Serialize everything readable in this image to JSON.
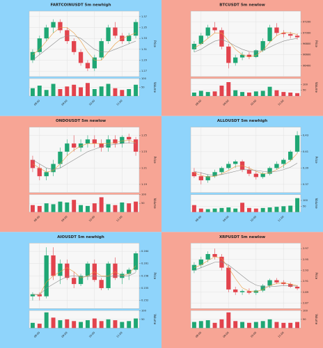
{
  "chart_data": [
    {
      "type": "candlestick",
      "title": "FARTCOINUSDT 5m newhigh",
      "background": "#8fd4fb",
      "up_color": "#1fa774",
      "down_color": "#e2434d",
      "grid": true,
      "y_label": "Price",
      "volume_label": "Volume",
      "categories": [
        null,
        "08:00",
        null,
        null,
        null,
        "09:00",
        null,
        null,
        null,
        "10:00",
        null,
        null,
        null,
        "11:00",
        null,
        null
      ],
      "ohlc": [
        [
          1.29,
          1.31,
          1.285,
          1.305
        ],
        [
          1.305,
          1.335,
          1.3,
          1.33
        ],
        [
          1.33,
          1.355,
          1.325,
          1.35
        ],
        [
          1.35,
          1.365,
          1.34,
          1.36
        ],
        [
          1.36,
          1.365,
          1.34,
          1.345
        ],
        [
          1.345,
          1.35,
          1.32,
          1.325
        ],
        [
          1.325,
          1.33,
          1.3,
          1.305
        ],
        [
          1.305,
          1.31,
          1.28,
          1.285
        ],
        [
          1.285,
          1.29,
          1.27,
          1.275
        ],
        [
          1.275,
          1.3,
          1.27,
          1.295
        ],
        [
          1.295,
          1.33,
          1.29,
          1.325
        ],
        [
          1.325,
          1.355,
          1.32,
          1.35
        ],
        [
          1.35,
          1.36,
          1.33,
          1.335
        ],
        [
          1.335,
          1.34,
          1.32,
          1.325
        ],
        [
          1.325,
          1.34,
          1.32,
          1.335
        ],
        [
          1.335,
          1.365,
          1.33,
          1.36
        ]
      ],
      "volume": [
        45,
        60,
        35,
        70,
        40,
        55,
        65,
        50,
        75,
        40,
        55,
        70,
        45,
        35,
        40,
        65
      ],
      "ma": [
        {
          "color": "#e89a3c",
          "values": [
            1.3,
            1.31,
            1.325,
            1.34,
            1.35,
            1.35,
            1.34,
            1.325,
            1.305,
            1.29,
            1.29,
            1.305,
            1.32,
            1.33,
            1.335,
            1.34
          ]
        },
        {
          "color": "#8a8a8a",
          "values": [
            1.29,
            1.3,
            1.31,
            1.32,
            1.33,
            1.335,
            1.335,
            1.33,
            1.32,
            1.31,
            1.305,
            1.305,
            1.31,
            1.315,
            1.32,
            1.325
          ]
        }
      ],
      "ylim": [
        1.26,
        1.38
      ],
      "yticks": [
        1.27,
        1.29,
        1.31,
        1.33,
        1.35,
        1.37
      ],
      "vlim": [
        0,
        100
      ],
      "vticks": [
        50,
        100
      ]
    },
    {
      "type": "candlestick",
      "title": "BTCUSDT 5m newlow",
      "background": "#f7a595",
      "up_color": "#1fa774",
      "down_color": "#e2434d",
      "grid": true,
      "y_label": "Price",
      "volume_label": "Volume",
      "categories": [
        null,
        "08:00",
        null,
        null,
        null,
        "09:00",
        null,
        null,
        null,
        "10:00",
        null,
        null,
        null,
        "11:00",
        null,
        null
      ],
      "ohlc": [
        [
          96700,
          96850,
          96650,
          96800
        ],
        [
          96800,
          97000,
          96780,
          96950
        ],
        [
          96950,
          97150,
          96900,
          97100
        ],
        [
          97100,
          97200,
          97000,
          97050
        ],
        [
          97050,
          97100,
          96700,
          96750
        ],
        [
          96750,
          96800,
          96350,
          96450
        ],
        [
          96450,
          96600,
          96400,
          96550
        ],
        [
          96550,
          96650,
          96500,
          96600
        ],
        [
          96600,
          96650,
          96520,
          96560
        ],
        [
          96560,
          96700,
          96540,
          96680
        ],
        [
          96680,
          96900,
          96650,
          96850
        ],
        [
          96850,
          97150,
          96820,
          97100
        ],
        [
          97100,
          97180,
          96950,
          97000
        ],
        [
          97000,
          97050,
          96920,
          96980
        ],
        [
          96980,
          97020,
          96900,
          96950
        ],
        [
          96950,
          96990,
          96880,
          96920
        ]
      ],
      "volume": [
        30,
        45,
        35,
        40,
        90,
        120,
        50,
        35,
        30,
        40,
        45,
        80,
        50,
        35,
        30,
        25
      ],
      "ma": [
        {
          "color": "#e89a3c",
          "values": [
            96720,
            96800,
            96900,
            97000,
            97000,
            96850,
            96700,
            96600,
            96560,
            96590,
            96680,
            96830,
            96950,
            97010,
            97000,
            96970
          ]
        },
        {
          "color": "#8a8a8a",
          "values": [
            96650,
            96700,
            96780,
            96850,
            96880,
            96830,
            96760,
            96700,
            96660,
            96650,
            96680,
            96740,
            96800,
            96850,
            96880,
            96900
          ]
        }
      ],
      "ylim": [
        96200,
        97400
      ],
      "yticks": [
        96400,
        96600,
        96800,
        97000,
        97200
      ],
      "vlim": [
        0,
        150
      ],
      "vticks": [
        50,
        100
      ]
    },
    {
      "type": "candlestick",
      "title": "ONDOUSDT 5m newlow",
      "background": "#f7a595",
      "up_color": "#1fa774",
      "down_color": "#e2434d",
      "grid": true,
      "y_label": "Price",
      "volume_label": "Volume",
      "categories": [
        null,
        "08:00",
        null,
        null,
        null,
        "09:00",
        null,
        null,
        null,
        "10:00",
        null,
        null,
        null,
        "11:00",
        null,
        null
      ],
      "ohlc": [
        [
          1.22,
          1.225,
          1.205,
          1.21
        ],
        [
          1.21,
          1.215,
          1.195,
          1.2
        ],
        [
          1.2,
          1.21,
          1.195,
          1.205
        ],
        [
          1.205,
          1.22,
          1.2,
          1.215
        ],
        [
          1.215,
          1.235,
          1.21,
          1.23
        ],
        [
          1.23,
          1.245,
          1.225,
          1.24
        ],
        [
          1.24,
          1.25,
          1.23,
          1.235
        ],
        [
          1.235,
          1.245,
          1.23,
          1.24
        ],
        [
          1.24,
          1.25,
          1.235,
          1.245
        ],
        [
          1.245,
          1.25,
          1.235,
          1.24
        ],
        [
          1.24,
          1.245,
          1.23,
          1.235
        ],
        [
          1.235,
          1.25,
          1.23,
          1.245
        ],
        [
          1.245,
          1.25,
          1.235,
          1.24
        ],
        [
          1.24,
          1.25,
          1.235,
          1.248
        ],
        [
          1.248,
          1.252,
          1.24,
          1.245
        ],
        [
          1.245,
          1.248,
          1.225,
          1.23
        ]
      ],
      "volume": [
        40,
        35,
        50,
        45,
        60,
        55,
        70,
        40,
        35,
        50,
        85,
        45,
        40,
        55,
        50,
        60
      ],
      "ma": [
        {
          "color": "#e89a3c",
          "values": [
            1.215,
            1.21,
            1.205,
            1.207,
            1.215,
            1.225,
            1.232,
            1.237,
            1.24,
            1.24,
            1.24,
            1.24,
            1.241,
            1.243,
            1.244,
            1.241
          ]
        },
        {
          "color": "#8a8a8a",
          "values": [
            1.22,
            1.215,
            1.21,
            1.208,
            1.21,
            1.215,
            1.22,
            1.225,
            1.23,
            1.233,
            1.236,
            1.238,
            1.239,
            1.24,
            1.241,
            1.24
          ]
        }
      ],
      "ylim": [
        1.18,
        1.26
      ],
      "yticks": [
        1.19,
        1.21,
        1.23,
        1.25
      ],
      "vlim": [
        0,
        100
      ],
      "vticks": [
        50,
        100
      ]
    },
    {
      "type": "candlestick",
      "title": "ALLOUSDT 5m newhigh",
      "background": "#8fd4fb",
      "up_color": "#1fa774",
      "down_color": "#e2434d",
      "grid": true,
      "y_label": "Price",
      "volume_label": "Volume",
      "categories": [
        null,
        "08:00",
        null,
        null,
        null,
        "09:00",
        null,
        null,
        null,
        "10:00",
        null,
        null,
        null,
        "11:00",
        null,
        null
      ],
      "ohlc": [
        [
          0.385,
          0.39,
          0.378,
          0.38
        ],
        [
          0.38,
          0.385,
          0.37,
          0.375
        ],
        [
          0.375,
          0.382,
          0.372,
          0.38
        ],
        [
          0.38,
          0.388,
          0.378,
          0.385
        ],
        [
          0.385,
          0.392,
          0.382,
          0.39
        ],
        [
          0.39,
          0.398,
          0.388,
          0.395
        ],
        [
          0.395,
          0.4,
          0.39,
          0.398
        ],
        [
          0.398,
          0.4,
          0.385,
          0.388
        ],
        [
          0.388,
          0.392,
          0.38,
          0.383
        ],
        [
          0.383,
          0.386,
          0.376,
          0.379
        ],
        [
          0.379,
          0.385,
          0.377,
          0.383
        ],
        [
          0.383,
          0.392,
          0.381,
          0.39
        ],
        [
          0.39,
          0.398,
          0.388,
          0.395
        ],
        [
          0.395,
          0.402,
          0.39,
          0.4
        ],
        [
          0.4,
          0.412,
          0.398,
          0.41
        ],
        [
          0.41,
          0.435,
          0.408,
          0.43
        ]
      ],
      "volume": [
        60,
        30,
        25,
        30,
        35,
        40,
        30,
        80,
        35,
        30,
        35,
        40,
        45,
        50,
        55,
        120
      ],
      "ma": [
        {
          "color": "#e89a3c",
          "values": [
            0.384,
            0.381,
            0.379,
            0.38,
            0.383,
            0.387,
            0.392,
            0.393,
            0.39,
            0.386,
            0.383,
            0.384,
            0.388,
            0.393,
            0.399,
            0.408
          ]
        },
        {
          "color": "#8a8a8a",
          "values": [
            0.386,
            0.384,
            0.382,
            0.381,
            0.382,
            0.384,
            0.386,
            0.388,
            0.388,
            0.387,
            0.386,
            0.385,
            0.386,
            0.388,
            0.391,
            0.396
          ]
        }
      ],
      "ylim": [
        0.36,
        0.44
      ],
      "yticks": [
        0.37,
        0.39,
        0.41,
        0.43
      ],
      "vlim": [
        0,
        150
      ],
      "vticks": [
        50,
        100
      ]
    },
    {
      "type": "candlestick",
      "title": "AIOUSDT 5m newhigh",
      "background": "#8fd4fb",
      "up_color": "#1fa774",
      "down_color": "#e2434d",
      "grid": true,
      "y_label": "Price",
      "volume_label": "Volume",
      "categories": [
        null,
        "08:00",
        null,
        null,
        null,
        "09:00",
        null,
        null,
        null,
        "10:00",
        null,
        null,
        null,
        "11:00",
        null,
        null
      ],
      "ohlc": [
        [
          0.153,
          0.154,
          0.152,
          0.1535
        ],
        [
          0.1535,
          0.154,
          0.152,
          0.153
        ],
        [
          0.153,
          0.165,
          0.1525,
          0.163
        ],
        [
          0.163,
          0.165,
          0.157,
          0.158
        ],
        [
          0.158,
          0.162,
          0.156,
          0.161
        ],
        [
          0.161,
          0.162,
          0.157,
          0.1575
        ],
        [
          0.1575,
          0.159,
          0.155,
          0.156
        ],
        [
          0.156,
          0.1585,
          0.1555,
          0.158
        ],
        [
          0.158,
          0.1615,
          0.157,
          0.161
        ],
        [
          0.161,
          0.162,
          0.1565,
          0.157
        ],
        [
          0.157,
          0.1575,
          0.1545,
          0.155
        ],
        [
          0.155,
          0.1615,
          0.1545,
          0.161
        ],
        [
          0.161,
          0.1625,
          0.157,
          0.1575
        ],
        [
          0.1575,
          0.159,
          0.156,
          0.1585
        ],
        [
          0.1585,
          0.16,
          0.157,
          0.1595
        ],
        [
          0.1595,
          0.164,
          0.159,
          0.1635
        ]
      ],
      "volume": [
        30,
        25,
        90,
        60,
        45,
        50,
        40,
        35,
        45,
        55,
        40,
        50,
        45,
        35,
        40,
        55
      ],
      "ma": [
        {
          "color": "#e89a3c",
          "values": [
            0.1535,
            0.1533,
            0.1565,
            0.158,
            0.159,
            0.16,
            0.159,
            0.1575,
            0.158,
            0.159,
            0.158,
            0.158,
            0.159,
            0.158,
            0.1585,
            0.1605
          ]
        },
        {
          "color": "#8a8a8a",
          "values": [
            0.1535,
            0.1534,
            0.155,
            0.156,
            0.157,
            0.1578,
            0.158,
            0.1578,
            0.1578,
            0.158,
            0.1578,
            0.1578,
            0.158,
            0.158,
            0.158,
            0.1588
          ]
        }
      ],
      "ylim": [
        0.15,
        0.166
      ],
      "yticks": [
        0.152,
        0.155,
        0.158,
        0.161,
        0.164
      ],
      "vlim": [
        0,
        100
      ],
      "vticks": [
        50,
        100
      ]
    },
    {
      "type": "candlestick",
      "title": "XRPUSDT 5m newlow",
      "background": "#f7a595",
      "up_color": "#1fa774",
      "down_color": "#e2434d",
      "grid": true,
      "y_label": "Price",
      "volume_label": "Volume",
      "categories": [
        null,
        "08:00",
        null,
        null,
        null,
        "09:00",
        null,
        null,
        null,
        "10:00",
        null,
        null,
        null,
        "11:00",
        null,
        null
      ],
      "ohlc": [
        [
          2.93,
          2.945,
          2.925,
          2.94
        ],
        [
          2.94,
          2.955,
          2.935,
          2.95
        ],
        [
          2.95,
          2.965,
          2.945,
          2.96
        ],
        [
          2.96,
          2.97,
          2.95,
          2.955
        ],
        [
          2.955,
          2.96,
          2.93,
          2.935
        ],
        [
          2.935,
          2.94,
          2.89,
          2.895
        ],
        [
          2.895,
          2.9,
          2.885,
          2.89
        ],
        [
          2.89,
          2.895,
          2.885,
          2.892
        ],
        [
          2.892,
          2.897,
          2.886,
          2.889
        ],
        [
          2.889,
          2.895,
          2.885,
          2.893
        ],
        [
          2.893,
          2.905,
          2.89,
          2.902
        ],
        [
          2.902,
          2.915,
          2.898,
          2.912
        ],
        [
          2.912,
          2.916,
          2.905,
          2.908
        ],
        [
          2.908,
          2.912,
          2.902,
          2.905
        ],
        [
          2.905,
          2.908,
          2.898,
          2.9
        ],
        [
          2.9,
          2.903,
          2.894,
          2.897
        ]
      ],
      "volume": [
        35,
        40,
        45,
        30,
        50,
        90,
        40,
        35,
        30,
        35,
        40,
        50,
        35,
        30,
        30,
        35
      ],
      "ma": [
        {
          "color": "#e89a3c",
          "values": [
            2.935,
            2.94,
            2.948,
            2.955,
            2.952,
            2.935,
            2.915,
            2.898,
            2.892,
            2.891,
            2.895,
            2.902,
            2.906,
            2.907,
            2.905,
            2.902
          ]
        },
        {
          "color": "#8a8a8a",
          "values": [
            2.93,
            2.935,
            2.94,
            2.945,
            2.946,
            2.94,
            2.93,
            2.92,
            2.91,
            2.903,
            2.9,
            2.9,
            2.901,
            2.902,
            2.902,
            2.901
          ]
        }
      ],
      "ylim": [
        2.86,
        2.98
      ],
      "yticks": [
        2.87,
        2.89,
        2.91,
        2.93,
        2.95,
        2.97
      ],
      "vlim": [
        0,
        100
      ],
      "vticks": [
        50,
        100
      ]
    }
  ]
}
